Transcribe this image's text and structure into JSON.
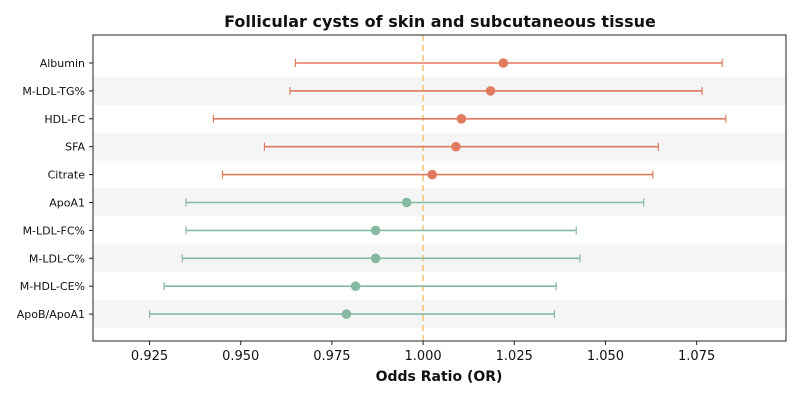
{
  "chart_data": {
    "type": "forest",
    "title": "Follicular cysts of skin and subcutaneous tissue",
    "xlabel": "Odds Ratio (OR)",
    "xlim": [
      0.9095,
      1.0995
    ],
    "x_ticks": [
      "0.925",
      "0.950",
      "0.975",
      "1.000",
      "1.025",
      "1.050",
      "1.075"
    ],
    "x_tick_values": [
      0.925,
      0.95,
      0.975,
      1.0,
      1.025,
      1.05,
      1.075
    ],
    "reference_line": 1.0,
    "colors": {
      "positive": "#e07b5f",
      "negative": "#86b9a1",
      "reference": "#f2c879",
      "stripe": "#f5f5f5"
    },
    "rows": [
      {
        "label": "Albumin",
        "or": 1.022,
        "lo": 0.965,
        "hi": 1.082,
        "group": "positive"
      },
      {
        "label": "M-LDL-TG%",
        "or": 1.0185,
        "lo": 0.9635,
        "hi": 1.0765,
        "group": "positive"
      },
      {
        "label": "HDL-FC",
        "or": 1.0105,
        "lo": 0.9425,
        "hi": 1.083,
        "group": "positive"
      },
      {
        "label": "SFA",
        "or": 1.009,
        "lo": 0.9565,
        "hi": 1.0645,
        "group": "positive"
      },
      {
        "label": "Citrate",
        "or": 1.0025,
        "lo": 0.945,
        "hi": 1.063,
        "group": "positive"
      },
      {
        "label": "ApoA1",
        "or": 0.9955,
        "lo": 0.935,
        "hi": 1.0605,
        "group": "negative"
      },
      {
        "label": "M-LDL-FC%",
        "or": 0.987,
        "lo": 0.935,
        "hi": 1.042,
        "group": "negative"
      },
      {
        "label": "M-LDL-C%",
        "or": 0.987,
        "lo": 0.934,
        "hi": 1.043,
        "group": "negative"
      },
      {
        "label": "M-HDL-CE%",
        "or": 0.9815,
        "lo": 0.929,
        "hi": 1.0365,
        "group": "negative"
      },
      {
        "label": "ApoB/ApoA1",
        "or": 0.979,
        "lo": 0.925,
        "hi": 1.036,
        "group": "negative"
      }
    ]
  }
}
